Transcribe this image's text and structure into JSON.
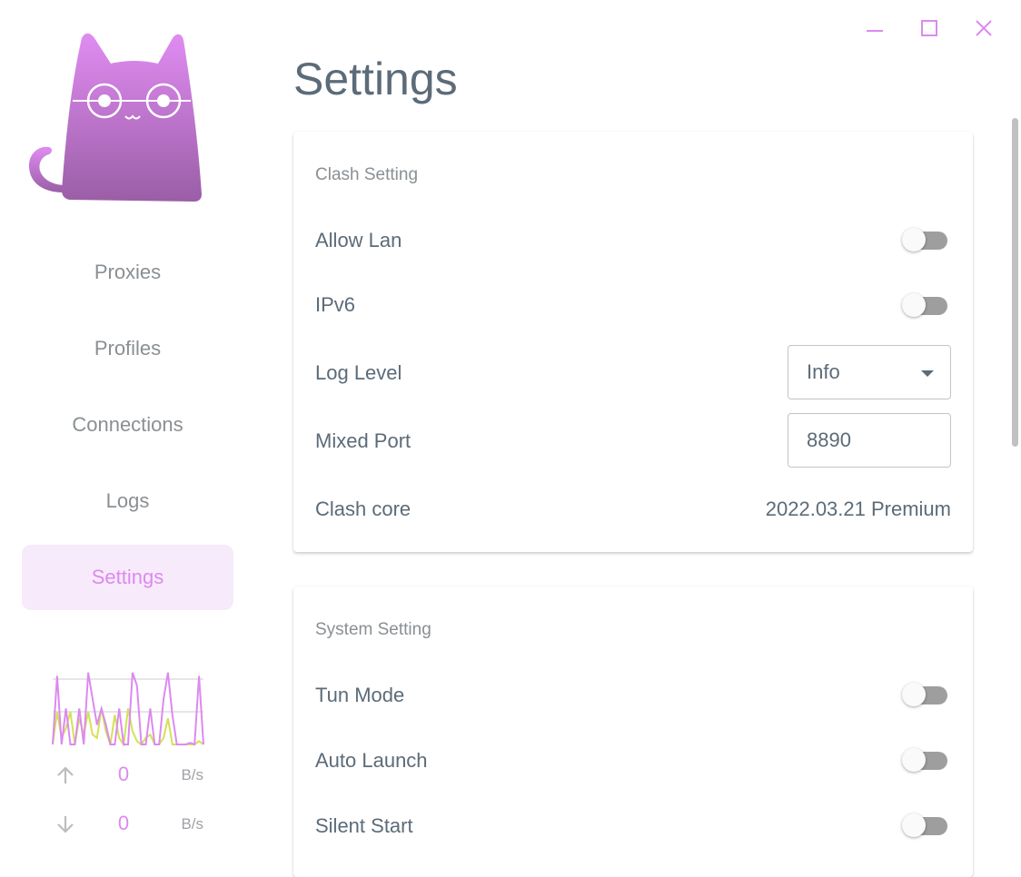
{
  "window": {
    "controls": [
      "minimize-icon",
      "maximize-icon",
      "close-icon"
    ],
    "accent": "#dc8af0"
  },
  "sidebar": {
    "items": [
      {
        "label": "Proxies",
        "active": false
      },
      {
        "label": "Profiles",
        "active": false
      },
      {
        "label": "Connections",
        "active": false
      },
      {
        "label": "Logs",
        "active": false
      },
      {
        "label": "Settings",
        "active": true
      }
    ],
    "traffic": {
      "upload_color": "#dc8af0",
      "download_color": "#d4e157",
      "upload_history": [
        0,
        2.1,
        0,
        1.1,
        0,
        0,
        1.1,
        0,
        2.2,
        1.4,
        0.6,
        1.1,
        0.6,
        0,
        0,
        1.1,
        0,
        0,
        2.2,
        1.8,
        0,
        0,
        1.1,
        0,
        0,
        1.4,
        2.2,
        0.9,
        0,
        0,
        0,
        0.05,
        0,
        2.1,
        0
      ],
      "download_history": [
        0,
        1.0,
        0.2,
        0.5,
        1.0,
        0,
        0.8,
        0.3,
        1.0,
        0.3,
        0.2,
        1.1,
        0.4,
        0,
        0.9,
        0.2,
        0,
        1.1,
        0.4,
        0.1,
        0,
        0.2,
        0.3,
        0,
        0,
        0.2,
        0.8,
        0,
        0,
        0,
        0,
        0,
        0,
        0.1,
        0
      ],
      "upload_speed": "0",
      "upload_unit": "B/s",
      "download_speed": "0",
      "download_unit": "B/s"
    }
  },
  "main": {
    "title": "Settings",
    "clash": {
      "title": "Clash Setting",
      "allow_lan": {
        "label": "Allow Lan",
        "on": false
      },
      "ipv6": {
        "label": "IPv6",
        "on": false
      },
      "log_level": {
        "label": "Log Level",
        "value": "Info"
      },
      "mixed_port": {
        "label": "Mixed Port",
        "value": "8890"
      },
      "clash_core": {
        "label": "Clash core",
        "value": "2022.03.21 Premium"
      }
    },
    "system": {
      "title": "System Setting",
      "tun_mode": {
        "label": "Tun Mode",
        "on": false
      },
      "auto_launch": {
        "label": "Auto Launch",
        "on": false
      },
      "silent_start": {
        "label": "Silent Start",
        "on": false
      }
    }
  }
}
